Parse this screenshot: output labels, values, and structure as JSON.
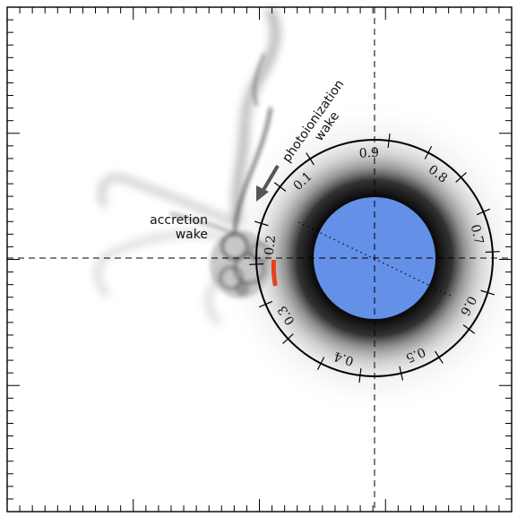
{
  "annotations": {
    "accretion_line1": "accretion",
    "accretion_line2": "wake",
    "photo_line1": "photoionization",
    "photo_line2": "wake"
  },
  "dial": {
    "labels": [
      "0.1",
      "0.2",
      "0.3",
      "0.4",
      "0.5",
      "0.6",
      "0.7",
      "0.8",
      "0.9"
    ]
  },
  "colors": {
    "planet": "#6490e8",
    "marker": "#e8401e",
    "ring": "#000000",
    "arrow": "#555555"
  }
}
